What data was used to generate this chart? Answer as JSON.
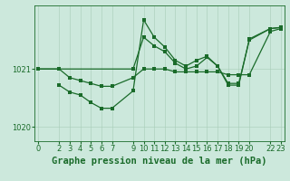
{
  "background_color": "#cce8dc",
  "line_color": "#1a6b2a",
  "grid_color": "#a8ccb8",
  "xlabel": "Graphe pression niveau de la mer (hPa)",
  "ylim": [
    1019.75,
    1022.1
  ],
  "xlim": [
    -0.3,
    23.3
  ],
  "yticks": [
    1020,
    1021
  ],
  "xticks": [
    0,
    2,
    3,
    4,
    5,
    6,
    7,
    9,
    10,
    11,
    12,
    13,
    14,
    15,
    16,
    17,
    18,
    19,
    20,
    22,
    23
  ],
  "line1_x": [
    0,
    2,
    3,
    4,
    5,
    6,
    7,
    9,
    10,
    11,
    12,
    13,
    14,
    15,
    16,
    17,
    18,
    19,
    20,
    22,
    23
  ],
  "line1_y": [
    1021.0,
    1021.0,
    1020.85,
    1020.8,
    1020.75,
    1020.7,
    1020.7,
    1020.85,
    1021.0,
    1021.0,
    1021.0,
    1020.95,
    1020.95,
    1020.95,
    1020.95,
    1020.95,
    1020.9,
    1020.9,
    1020.9,
    1021.65,
    1021.7
  ],
  "line2_x": [
    0,
    2,
    9,
    10,
    11,
    12,
    13,
    14,
    15,
    16,
    17,
    18,
    19,
    20,
    22,
    23
  ],
  "line2_y": [
    1021.0,
    1021.0,
    1021.0,
    1021.55,
    1021.4,
    1021.3,
    1021.1,
    1021.0,
    1021.05,
    1021.2,
    1021.05,
    1020.75,
    1020.75,
    1021.5,
    1021.7,
    1021.72
  ],
  "line3_x": [
    2,
    3,
    4,
    5,
    6,
    7,
    9,
    10,
    11,
    12,
    13,
    14,
    15,
    16,
    17,
    18,
    19,
    20,
    22,
    23
  ],
  "line3_y": [
    1020.72,
    1020.6,
    1020.55,
    1020.42,
    1020.32,
    1020.32,
    1020.62,
    1021.85,
    1021.55,
    1021.38,
    1021.15,
    1021.05,
    1021.15,
    1021.22,
    1021.05,
    1020.72,
    1020.72,
    1021.52,
    1021.7,
    1021.72
  ],
  "marker_size": 2.5,
  "linewidth": 0.9,
  "xlabel_fontsize": 7.5,
  "tick_fontsize": 6,
  "line_color2": "#1a6b2a"
}
